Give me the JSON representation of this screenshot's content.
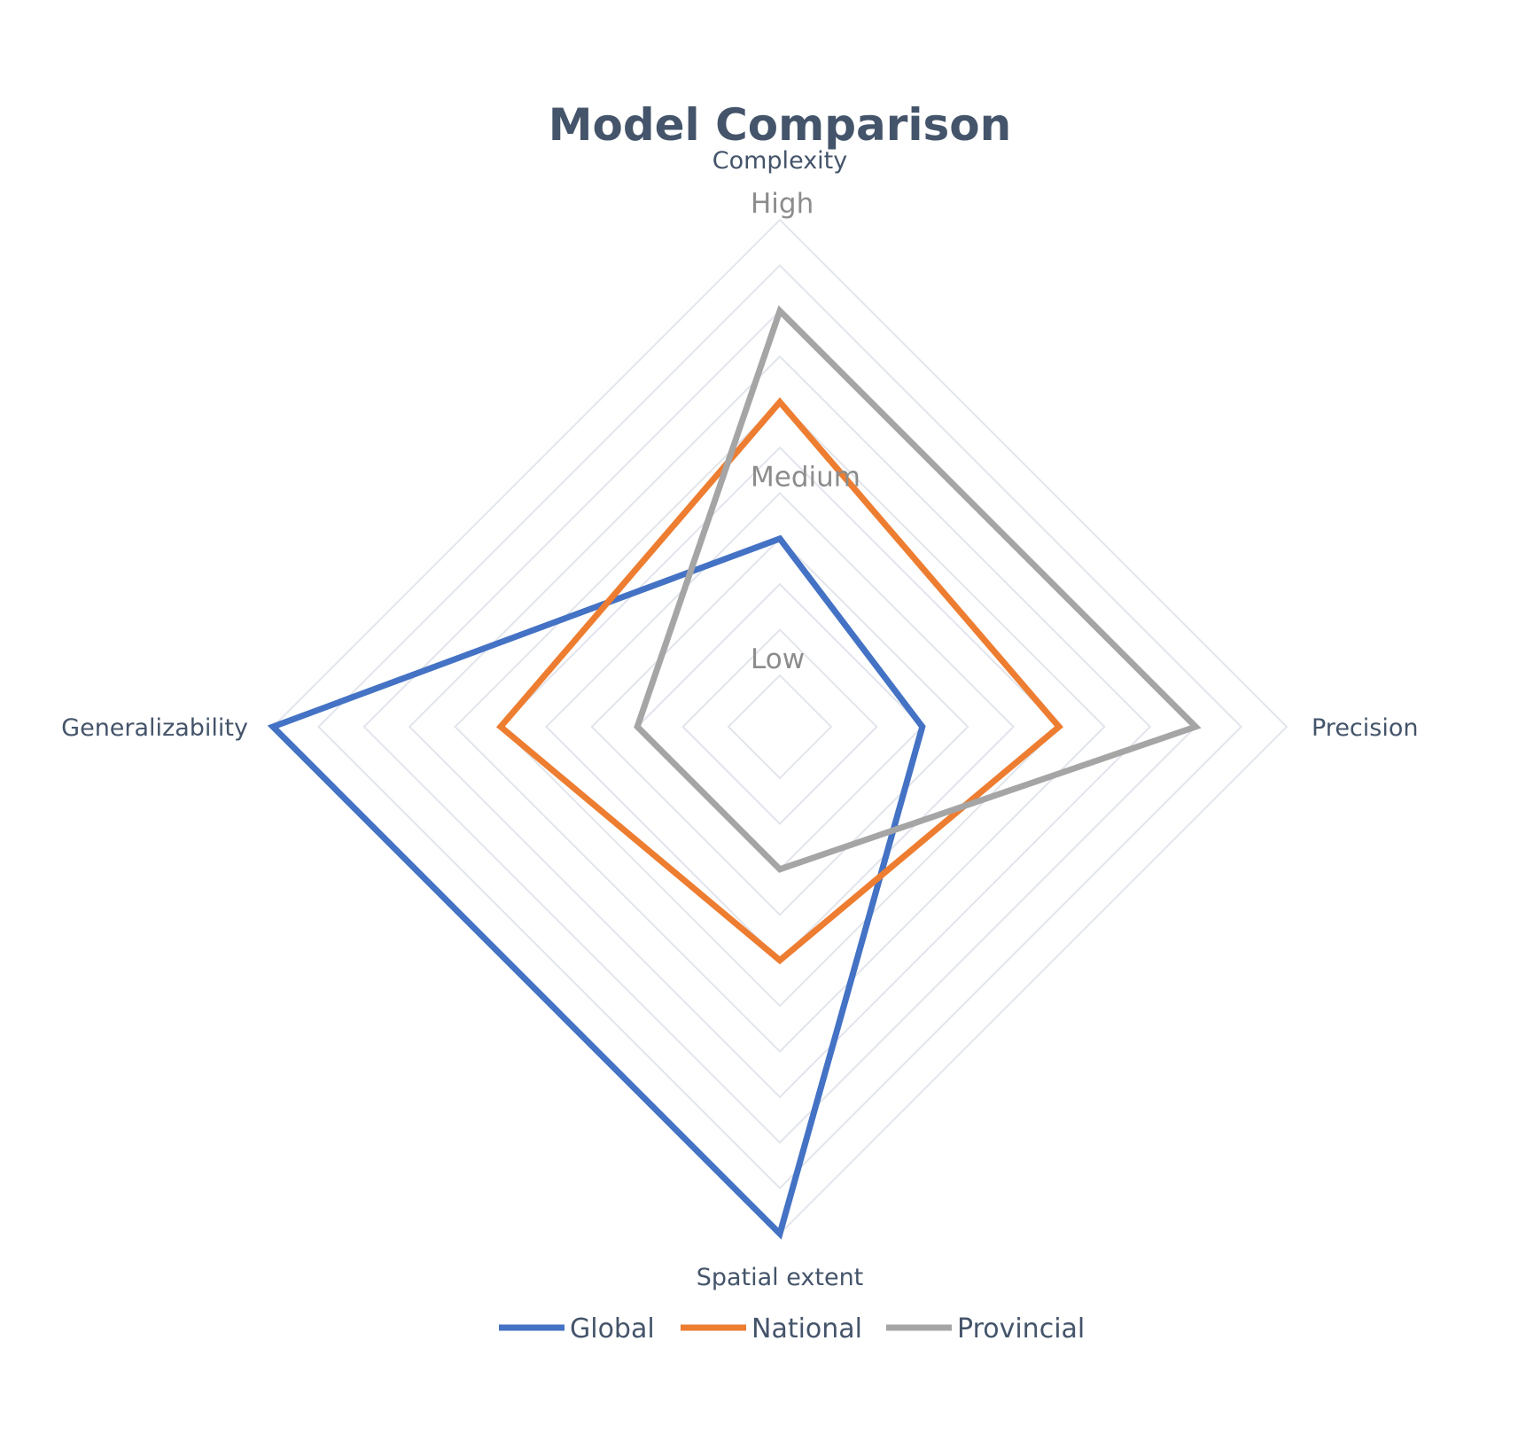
{
  "chart_data": {
    "type": "radar",
    "title": "Model Comparison",
    "axes": [
      "Complexity",
      "Precision",
      "Spatial extent",
      "Generalizability"
    ],
    "scale_labels": [
      {
        "label": "Low",
        "value": 0
      },
      {
        "label": "Medium",
        "value": 4
      },
      {
        "label": "High",
        "value": 10
      }
    ],
    "range": [
      0,
      10
    ],
    "grid_rings": 10,
    "series": [
      {
        "name": "Global",
        "color": "#4472c4",
        "values": [
          3,
          2,
          10,
          10
        ]
      },
      {
        "name": "National",
        "color": "#ed7d31",
        "values": [
          6,
          5,
          4,
          5
        ]
      },
      {
        "name": "Provincial",
        "color": "#a5a5a5",
        "values": [
          8,
          8,
          2,
          2
        ]
      }
    ],
    "legend_position": "bottom"
  }
}
